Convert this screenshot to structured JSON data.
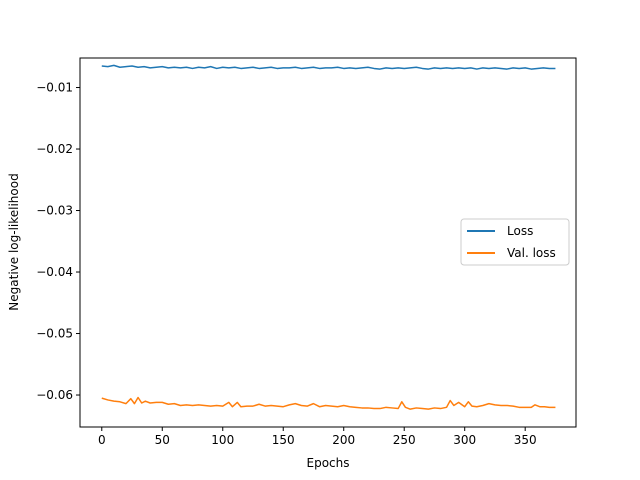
{
  "chart_data": {
    "type": "line",
    "title": "",
    "xlabel": "Epochs",
    "ylabel": "Negative log-likelihood",
    "xlim": [
      -18,
      392
    ],
    "ylim": [
      -0.0652,
      -0.0052
    ],
    "xticks": [
      0,
      50,
      100,
      150,
      200,
      250,
      300,
      350
    ],
    "xtick_labels": [
      "0",
      "50",
      "100",
      "150",
      "200",
      "250",
      "300",
      "350"
    ],
    "yticks": [
      -0.01,
      -0.02,
      -0.03,
      -0.04,
      -0.05,
      -0.06
    ],
    "ytick_labels": [
      "−0.01",
      "−0.02",
      "−0.03",
      "−0.04",
      "−0.05",
      "−0.06"
    ],
    "grid": false,
    "legend_position": "center-right",
    "series": [
      {
        "name": "Loss",
        "color": "#1f77b4",
        "x": [
          0,
          5,
          10,
          15,
          20,
          25,
          30,
          35,
          40,
          45,
          50,
          55,
          60,
          65,
          70,
          75,
          80,
          85,
          90,
          95,
          100,
          105,
          110,
          115,
          120,
          125,
          130,
          135,
          140,
          145,
          150,
          155,
          160,
          165,
          170,
          175,
          180,
          185,
          190,
          195,
          200,
          205,
          210,
          215,
          220,
          225,
          230,
          235,
          240,
          245,
          250,
          255,
          260,
          265,
          270,
          275,
          280,
          285,
          290,
          295,
          300,
          305,
          310,
          315,
          320,
          325,
          330,
          335,
          340,
          345,
          350,
          355,
          360,
          365,
          370,
          375
        ],
        "y": [
          -0.0065,
          -0.0066,
          -0.0064,
          -0.0067,
          -0.0066,
          -0.0065,
          -0.0067,
          -0.0066,
          -0.0068,
          -0.0067,
          -0.0066,
          -0.0068,
          -0.0067,
          -0.0068,
          -0.0067,
          -0.0069,
          -0.0067,
          -0.0068,
          -0.0066,
          -0.0069,
          -0.0067,
          -0.0068,
          -0.0067,
          -0.0069,
          -0.0068,
          -0.0067,
          -0.0069,
          -0.0068,
          -0.0067,
          -0.0069,
          -0.0068,
          -0.0068,
          -0.0067,
          -0.0069,
          -0.0068,
          -0.0067,
          -0.0069,
          -0.0068,
          -0.0068,
          -0.0067,
          -0.0069,
          -0.0068,
          -0.0069,
          -0.0068,
          -0.0067,
          -0.0069,
          -0.007,
          -0.0068,
          -0.0069,
          -0.0068,
          -0.0069,
          -0.0068,
          -0.0067,
          -0.0069,
          -0.007,
          -0.0068,
          -0.0069,
          -0.0068,
          -0.0069,
          -0.0068,
          -0.0069,
          -0.0068,
          -0.007,
          -0.0068,
          -0.0069,
          -0.0068,
          -0.0069,
          -0.007,
          -0.0068,
          -0.0069,
          -0.0068,
          -0.007,
          -0.0069,
          -0.0068,
          -0.0069,
          -0.0069
        ]
      },
      {
        "name": "Val. loss",
        "color": "#ff7f0e",
        "x": [
          0,
          5,
          10,
          15,
          20,
          24,
          27,
          30,
          33,
          36,
          40,
          45,
          50,
          55,
          60,
          65,
          70,
          75,
          80,
          85,
          90,
          95,
          100,
          105,
          108,
          112,
          115,
          120,
          125,
          130,
          135,
          140,
          145,
          150,
          155,
          160,
          165,
          170,
          175,
          180,
          185,
          190,
          195,
          200,
          205,
          210,
          215,
          220,
          225,
          230,
          235,
          240,
          245,
          248,
          251,
          255,
          260,
          265,
          270,
          275,
          280,
          285,
          288,
          291,
          295,
          300,
          303,
          306,
          310,
          315,
          320,
          325,
          330,
          335,
          340,
          345,
          350,
          355,
          358,
          362,
          366,
          370,
          375
        ],
        "y": [
          -0.0605,
          -0.0608,
          -0.061,
          -0.0611,
          -0.0614,
          -0.0606,
          -0.0614,
          -0.0604,
          -0.0613,
          -0.061,
          -0.0613,
          -0.0612,
          -0.0612,
          -0.0615,
          -0.0614,
          -0.0617,
          -0.0616,
          -0.0617,
          -0.0616,
          -0.0617,
          -0.0618,
          -0.0617,
          -0.0618,
          -0.0612,
          -0.0619,
          -0.0612,
          -0.0619,
          -0.0618,
          -0.0618,
          -0.0615,
          -0.0618,
          -0.0617,
          -0.0618,
          -0.0619,
          -0.0616,
          -0.0614,
          -0.0617,
          -0.0618,
          -0.0614,
          -0.0619,
          -0.0617,
          -0.0618,
          -0.0619,
          -0.0617,
          -0.0619,
          -0.062,
          -0.0621,
          -0.0621,
          -0.0622,
          -0.0622,
          -0.062,
          -0.0621,
          -0.0622,
          -0.0611,
          -0.062,
          -0.0623,
          -0.0621,
          -0.0622,
          -0.0623,
          -0.0621,
          -0.0622,
          -0.062,
          -0.0609,
          -0.0617,
          -0.0612,
          -0.0619,
          -0.0611,
          -0.0618,
          -0.0619,
          -0.0617,
          -0.0614,
          -0.0616,
          -0.0617,
          -0.0617,
          -0.0618,
          -0.062,
          -0.062,
          -0.062,
          -0.0616,
          -0.0619,
          -0.0619,
          -0.062,
          -0.062
        ]
      }
    ]
  }
}
